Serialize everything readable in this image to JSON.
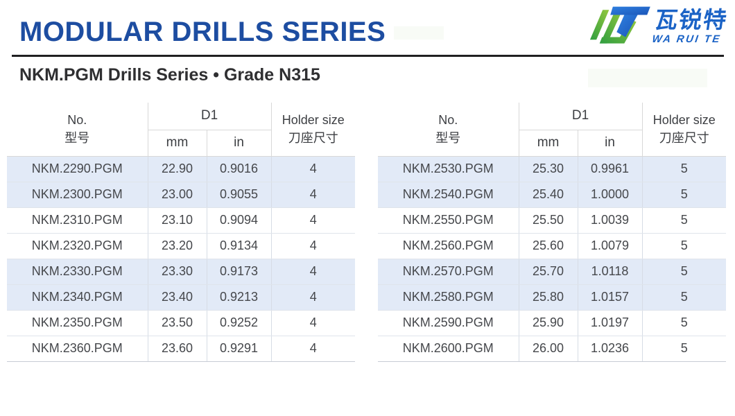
{
  "header": {
    "title": "MODULAR DRILLS SERIES",
    "subtitle": "NKM.PGM Drills Series • Grade N315",
    "brand": {
      "cn": "瓦锐特",
      "en": "WA RUI TE"
    }
  },
  "colors": {
    "title_blue": "#1d4da1",
    "brand_blue": "#1b63c6",
    "brand_green": "#55b944",
    "stripe_blue": "#e2eaf7",
    "rule_dark": "#1f1f21"
  },
  "table_header": {
    "no_en": "No.",
    "no_cn": "型号",
    "d1": "D1",
    "mm": "mm",
    "in": "in",
    "holder_en": "Holder size",
    "holder_cn": "刀座尺寸"
  },
  "tables": [
    {
      "rows": [
        {
          "no": "NKM.2290.PGM",
          "mm": "22.90",
          "in": "0.9016",
          "holder": "4"
        },
        {
          "no": "NKM.2300.PGM",
          "mm": "23.00",
          "in": "0.9055",
          "holder": "4"
        },
        {
          "no": "NKM.2310.PGM",
          "mm": "23.10",
          "in": "0.9094",
          "holder": "4"
        },
        {
          "no": "NKM.2320.PGM",
          "mm": "23.20",
          "in": "0.9134",
          "holder": "4"
        },
        {
          "no": "NKM.2330.PGM",
          "mm": "23.30",
          "in": "0.9173",
          "holder": "4"
        },
        {
          "no": "NKM.2340.PGM",
          "mm": "23.40",
          "in": "0.9213",
          "holder": "4"
        },
        {
          "no": "NKM.2350.PGM",
          "mm": "23.50",
          "in": "0.9252",
          "holder": "4"
        },
        {
          "no": "NKM.2360.PGM",
          "mm": "23.60",
          "in": "0.9291",
          "holder": "4"
        }
      ]
    },
    {
      "rows": [
        {
          "no": "NKM.2530.PGM",
          "mm": "25.30",
          "in": "0.9961",
          "holder": "5"
        },
        {
          "no": "NKM.2540.PGM",
          "mm": "25.40",
          "in": "1.0000",
          "holder": "5"
        },
        {
          "no": "NKM.2550.PGM",
          "mm": "25.50",
          "in": "1.0039",
          "holder": "5"
        },
        {
          "no": "NKM.2560.PGM",
          "mm": "25.60",
          "in": "1.0079",
          "holder": "5"
        },
        {
          "no": "NKM.2570.PGM",
          "mm": "25.70",
          "in": "1.0118",
          "holder": "5"
        },
        {
          "no": "NKM.2580.PGM",
          "mm": "25.80",
          "in": "1.0157",
          "holder": "5"
        },
        {
          "no": "NKM.2590.PGM",
          "mm": "25.90",
          "in": "1.0197",
          "holder": "5"
        },
        {
          "no": "NKM.2600.PGM",
          "mm": "26.00",
          "in": "1.0236",
          "holder": "5"
        }
      ]
    }
  ]
}
